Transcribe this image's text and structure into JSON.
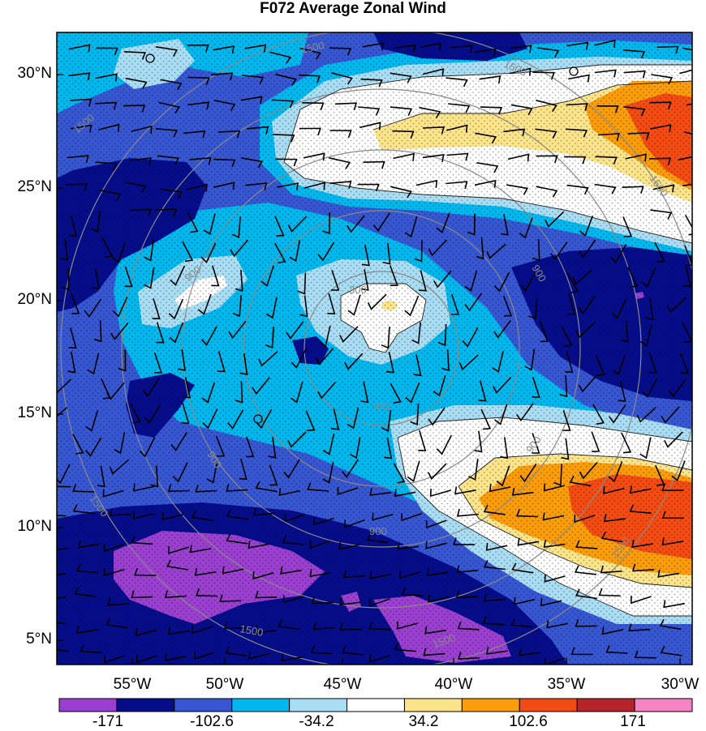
{
  "title": "F072 Average Zonal Wind",
  "lat_labels": [
    "30°N",
    "25°N",
    "20°N",
    "15°N",
    "10°N",
    "5°N"
  ],
  "lon_labels": [
    "55°W",
    "50°W",
    "45°W",
    "40°W",
    "35°W",
    "30°W"
  ],
  "colorbar": {
    "labels": [
      "-171",
      "-102.6",
      "-34.2",
      "34.2",
      "102.6",
      "171"
    ],
    "colors": [
      "#9a3fd0",
      "#050d8a",
      "#3656d2",
      "#00b7ee",
      "#a9ddf4",
      "#ffffff",
      "#fbe48a",
      "#fb9d0a",
      "#f44b12",
      "#b4242a",
      "#f684c4"
    ]
  },
  "range_ring_labels": [
    "300",
    "900",
    "1500"
  ]
}
